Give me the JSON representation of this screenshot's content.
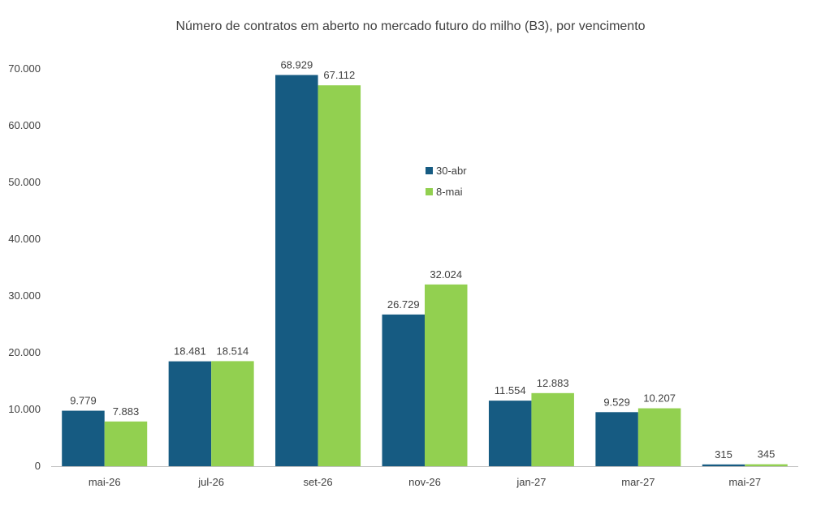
{
  "chart_data": {
    "type": "bar",
    "title": "Número de contratos em aberto no mercado futuro do milho (B3), por vencimento",
    "xlabel": "",
    "ylabel": "",
    "categories": [
      "mai-26",
      "jul-26",
      "set-26",
      "nov-26",
      "jan-27",
      "mar-27",
      "mai-27"
    ],
    "series": [
      {
        "name": "30-abr",
        "color": "#165b82",
        "values": [
          9779,
          18481,
          68929,
          26729,
          11554,
          9529,
          315
        ],
        "labels": [
          "9.779",
          "18.481",
          "68.929",
          "26.729",
          "11.554",
          "9.529",
          "315"
        ]
      },
      {
        "name": "8-mai",
        "color": "#92d050",
        "values": [
          7883,
          18514,
          67112,
          32024,
          12883,
          10207,
          345
        ],
        "labels": [
          "7.883",
          "18.514",
          "67.112",
          "32.024",
          "12.883",
          "10.207",
          "345"
        ]
      }
    ],
    "ylim": [
      0,
      70000
    ],
    "yticks": [
      0,
      10000,
      20000,
      30000,
      40000,
      50000,
      60000,
      70000
    ],
    "ytick_labels": [
      "0",
      "10.000",
      "20.000",
      "30.000",
      "40.000",
      "50.000",
      "60.000",
      "70.000"
    ],
    "grid": false,
    "legend_position": "center"
  }
}
